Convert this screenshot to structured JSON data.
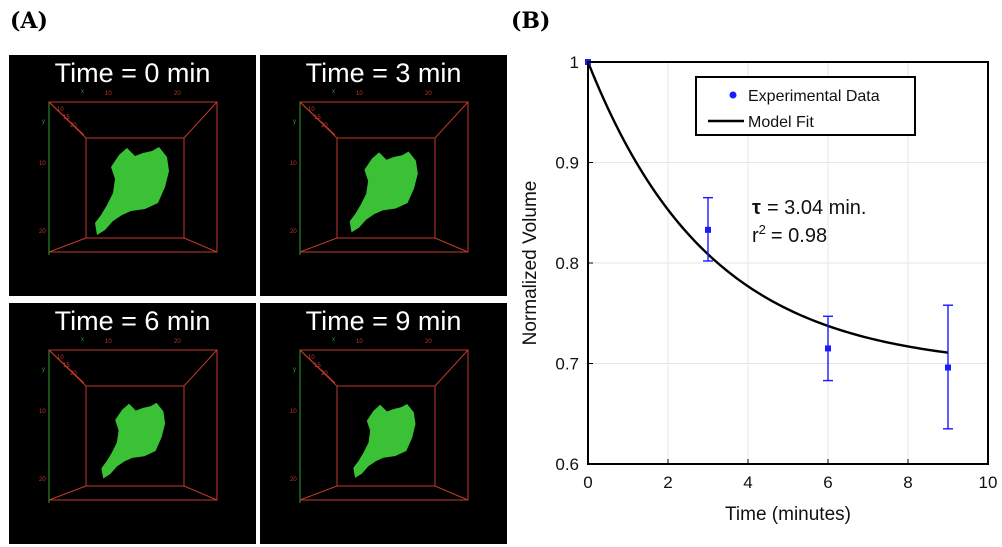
{
  "panel_labels": {
    "a": "(A)",
    "b": "(B)"
  },
  "tiles": [
    {
      "title": "Time = 0 min",
      "scale": 1.0
    },
    {
      "title": "Time = 3 min",
      "scale": 0.92
    },
    {
      "title": "Time = 6 min",
      "scale": 0.86
    },
    {
      "title": "Time = 9 min",
      "scale": 0.84
    }
  ],
  "tile_axis_ticks": {
    "top": [
      "10",
      "20"
    ],
    "left": [
      "10",
      "20"
    ],
    "diag": [
      "10",
      "15",
      "20"
    ],
    "x": "x",
    "y": "y",
    "z": "z"
  },
  "colors": {
    "cell": "#3fd13a",
    "box": "#c0392b",
    "axis_green": "#2ea02e",
    "data": "#1a1aff",
    "fit": "#000000"
  },
  "chart_data": {
    "type": "scatter",
    "xlabel": "Time (minutes)",
    "ylabel": "Normalized Volume",
    "xlim": [
      0,
      10
    ],
    "ylim": [
      0.6,
      1.0
    ],
    "xticks": [
      0,
      2,
      4,
      6,
      8,
      10
    ],
    "yticks": [
      0.6,
      0.7,
      0.8,
      0.9,
      1.0
    ],
    "xtick_labels": [
      "0",
      "2",
      "4",
      "6",
      "8",
      "10"
    ],
    "ytick_labels": [
      "0.6",
      "0.7",
      "0.8",
      "0.9",
      "1"
    ],
    "grid": true,
    "series": [
      {
        "name": "Experimental Data",
        "kind": "points",
        "x": [
          0,
          3,
          6,
          9
        ],
        "y": [
          1.0,
          0.833,
          0.715,
          0.696
        ],
        "err_low": [
          0.0,
          0.031,
          0.032,
          0.061
        ],
        "err_high": [
          0.0,
          0.032,
          0.032,
          0.062
        ]
      },
      {
        "name": "Model Fit",
        "kind": "line",
        "model": "exponential_decay",
        "tau": 3.04,
        "plateau": 0.695,
        "x_range": [
          0,
          9
        ]
      }
    ],
    "legend": {
      "position": "top-right",
      "entries": [
        "Experimental Data",
        "Model Fit"
      ]
    },
    "annotation": {
      "tau_symbol": "τ",
      "tau_text": "= 3.04 min.",
      "r2_base": "r",
      "r2_sup": "2",
      "r2_text": "= 0.98"
    }
  }
}
